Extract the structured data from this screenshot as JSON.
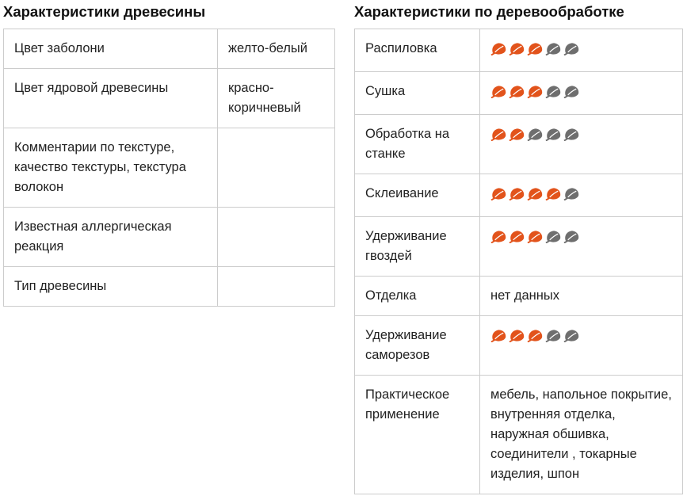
{
  "wood": {
    "title": "Характеристики древесины",
    "rows": [
      {
        "label": "Цвет заболони",
        "value": "желто-белый"
      },
      {
        "label": "Цвет ядровой древесины",
        "value": "красно-коричневый"
      },
      {
        "label": "Комментарии по текстуре, качество текстуры, текстура волокон",
        "value": ""
      },
      {
        "label": "Известная аллергическая реакция",
        "value": ""
      },
      {
        "label": "Тип древесины",
        "value": ""
      }
    ]
  },
  "woodworking": {
    "title": "Характеристики по деревообработке",
    "rating_max": 5,
    "rating_colors": {
      "filled": "#e2531b",
      "empty": "#6e6e6e"
    },
    "rating_icon": "leaf-icon",
    "rows": [
      {
        "label": "Распиловка",
        "rating": 3
      },
      {
        "label": "Сушка",
        "rating": 3
      },
      {
        "label": "Обработка на станке",
        "rating": 2
      },
      {
        "label": "Склеивание",
        "rating": 4
      },
      {
        "label": "Удерживание гвоздей",
        "rating": 3
      },
      {
        "label": "Отделка",
        "value": "нет данных"
      },
      {
        "label": "Удерживание саморезов",
        "rating": 3
      },
      {
        "label": "Практическое применение",
        "value": "мебель, напольное покрытие, внутренняя отделка, наружная обшивка, соединители , токарные изделия, шпон"
      }
    ]
  }
}
